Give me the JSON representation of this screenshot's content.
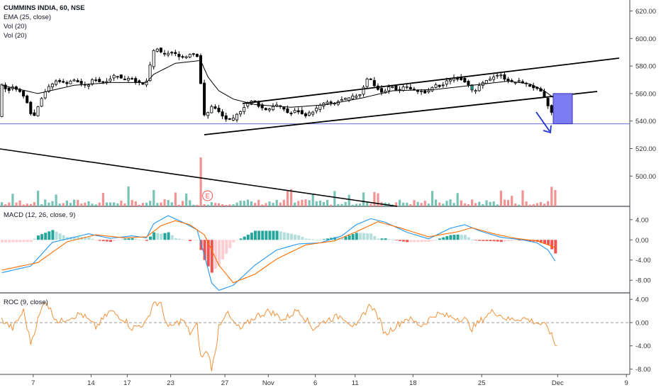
{
  "legend": {
    "symbol": "CUMMINS INDIA, 60, NSE",
    "ema": "EMA (25, close)",
    "vol1": "Vol (20)",
    "vol2": "Vol (20)",
    "macd": "MACD (12, 26, close, 9)",
    "roc": "ROC (9, close)"
  },
  "event_marker": "E",
  "colors": {
    "up": "#26a69a",
    "down": "#ef5350",
    "up_bar_vol": "#5fb8a8",
    "down_bar_vol": "#f08080",
    "macd_line": "#2196f3",
    "signal_line": "#ff6d00",
    "roc_line": "#f2913a",
    "level_line": "#6b6bd6",
    "target_box": "#7b7bf2",
    "arrow": "#2233cc",
    "divider": "#434651"
  },
  "chart_data": [
    {
      "type": "candlestick",
      "title": "CUMMINS INDIA, 60, NSE",
      "overlay": "EMA (25, close)",
      "ylim": [
        478,
        628
      ],
      "yticks": [
        "620.00",
        "600.00",
        "580.00",
        "560.00",
        "540.00",
        "520.00",
        "500.00"
      ],
      "xticks": [
        "7",
        "14",
        "17",
        "23",
        "27",
        "Nov",
        "6",
        "11",
        "18",
        "25",
        "Dec",
        "9"
      ],
      "close_path": [
        [
          0,
          568
        ],
        [
          2,
          562
        ],
        [
          4,
          565
        ],
        [
          6,
          560
        ],
        [
          8,
          552
        ],
        [
          9,
          540
        ],
        [
          10,
          548
        ],
        [
          12,
          560
        ],
        [
          14,
          566
        ],
        [
          16,
          570
        ],
        [
          18,
          567
        ],
        [
          20,
          570
        ],
        [
          22,
          568
        ],
        [
          24,
          565
        ],
        [
          26,
          571
        ],
        [
          28,
          568
        ],
        [
          30,
          570
        ],
        [
          32,
          574
        ],
        [
          34,
          570
        ],
        [
          36,
          572
        ],
        [
          38,
          568
        ],
        [
          40,
          566
        ],
        [
          41,
          572
        ],
        [
          42,
          588
        ],
        [
          43,
          594
        ],
        [
          45,
          588
        ],
        [
          47,
          590
        ],
        [
          49,
          588
        ],
        [
          51,
          586
        ],
        [
          53,
          590
        ],
        [
          54,
          588
        ],
        [
          55,
          587
        ],
        [
          56,
          548
        ],
        [
          57,
          540
        ],
        [
          58,
          552
        ],
        [
          60,
          548
        ],
        [
          62,
          542
        ],
        [
          64,
          540
        ],
        [
          66,
          546
        ],
        [
          68,
          552
        ],
        [
          70,
          555
        ],
        [
          72,
          550
        ],
        [
          74,
          548
        ],
        [
          76,
          552
        ],
        [
          78,
          550
        ],
        [
          80,
          545
        ],
        [
          82,
          548
        ],
        [
          84,
          544
        ],
        [
          86,
          546
        ],
        [
          88,
          550
        ],
        [
          90,
          554
        ],
        [
          92,
          552
        ],
        [
          94,
          555
        ],
        [
          96,
          556
        ],
        [
          98,
          558
        ],
        [
          100,
          560
        ],
        [
          101,
          570
        ],
        [
          102,
          572
        ],
        [
          104,
          564
        ],
        [
          106,
          560
        ],
        [
          108,
          566
        ],
        [
          110,
          562
        ],
        [
          112,
          566
        ],
        [
          114,
          562
        ],
        [
          116,
          562
        ],
        [
          118,
          560
        ],
        [
          120,
          566
        ],
        [
          122,
          565
        ],
        [
          124,
          570
        ],
        [
          126,
          572
        ],
        [
          128,
          570
        ],
        [
          130,
          566
        ],
        [
          131,
          558
        ],
        [
          132,
          565
        ],
        [
          134,
          568
        ],
        [
          136,
          572
        ],
        [
          138,
          574
        ],
        [
          140,
          570
        ],
        [
          142,
          568
        ],
        [
          144,
          569
        ],
        [
          146,
          566
        ],
        [
          148,
          564
        ],
        [
          150,
          560
        ],
        [
          151,
          554
        ],
        [
          152,
          548
        ],
        [
          153,
          544
        ]
      ],
      "ema_samples": [
        [
          0,
          566
        ],
        [
          10,
          560
        ],
        [
          20,
          566
        ],
        [
          30,
          568
        ],
        [
          40,
          568
        ],
        [
          42,
          574
        ],
        [
          48,
          582
        ],
        [
          55,
          584
        ],
        [
          57,
          572
        ],
        [
          60,
          562
        ],
        [
          64,
          556
        ],
        [
          70,
          552
        ],
        [
          80,
          550
        ],
        [
          90,
          552
        ],
        [
          100,
          557
        ],
        [
          108,
          562
        ],
        [
          120,
          563
        ],
        [
          130,
          566
        ],
        [
          140,
          569
        ],
        [
          146,
          567
        ],
        [
          150,
          562
        ],
        [
          153,
          556
        ]
      ],
      "volume_bars": [
        {
          "x": 55,
          "v": 15,
          "dir": "down"
        },
        {
          "x": 152,
          "v": 6,
          "dir": "down"
        },
        {
          "x": 153,
          "v": 5,
          "dir": "up"
        },
        {
          "x": 104,
          "v": 4,
          "dir": "up"
        },
        {
          "x": 42,
          "v": 5,
          "dir": "up"
        }
      ],
      "annotations": {
        "channel_upper": [
          [
            68,
            557
          ],
          [
            170,
            571
          ]
        ],
        "channel_lower": [
          [
            58,
            533
          ],
          [
            170,
            591
          ]
        ],
        "resistance_line": [
          [
            102,
            559
          ],
          [
            175,
            592
          ]
        ],
        "volume_trendline": [
          [
            0,
            522
          ],
          [
            112,
            475
          ]
        ],
        "level_line": 538,
        "target_box": [
          [
            158,
            538
          ],
          [
            168,
            560
          ]
        ]
      }
    },
    {
      "type": "line",
      "title": "MACD (12, 26, close, 9)",
      "ylim": [
        -10.5,
        6.5
      ],
      "yticks": [
        "4.00",
        "0.00",
        "-4.00",
        "-8.00"
      ],
      "series": [
        {
          "name": "MACD",
          "samples": [
            [
              0,
              -6.5
            ],
            [
              8,
              -5.2
            ],
            [
              14,
              -0.5
            ],
            [
              24,
              1.2
            ],
            [
              30,
              0.3
            ],
            [
              36,
              0.8
            ],
            [
              40,
              0.4
            ],
            [
              42,
              3.2
            ],
            [
              46,
              4.8
            ],
            [
              50,
              3.5
            ],
            [
              54,
              2.0
            ],
            [
              56,
              -3.0
            ],
            [
              58,
              -8.5
            ],
            [
              60,
              -10.0
            ],
            [
              64,
              -9.0
            ],
            [
              70,
              -5.0
            ],
            [
              76,
              -2.0
            ],
            [
              82,
              -0.8
            ],
            [
              88,
              -0.6
            ],
            [
              94,
              0.8
            ],
            [
              98,
              3.0
            ],
            [
              102,
              4.2
            ],
            [
              106,
              3.5
            ],
            [
              112,
              1.5
            ],
            [
              118,
              0.2
            ],
            [
              124,
              2.3
            ],
            [
              128,
              3.0
            ],
            [
              132,
              1.8
            ],
            [
              138,
              0.5
            ],
            [
              144,
              0.0
            ],
            [
              148,
              -0.6
            ],
            [
              151,
              -2.0
            ],
            [
              153,
              -4.2
            ]
          ]
        },
        {
          "name": "Signal",
          "samples": [
            [
              0,
              -6.0
            ],
            [
              10,
              -4.5
            ],
            [
              18,
              -0.4
            ],
            [
              26,
              1.0
            ],
            [
              34,
              0.4
            ],
            [
              40,
              0.6
            ],
            [
              44,
              2.8
            ],
            [
              48,
              3.8
            ],
            [
              52,
              3.0
            ],
            [
              56,
              1.0
            ],
            [
              60,
              -5.0
            ],
            [
              64,
              -8.5
            ],
            [
              70,
              -6.8
            ],
            [
              76,
              -3.8
            ],
            [
              84,
              -1.0
            ],
            [
              92,
              -0.2
            ],
            [
              98,
              1.6
            ],
            [
              104,
              3.6
            ],
            [
              110,
              2.4
            ],
            [
              118,
              0.6
            ],
            [
              126,
              1.6
            ],
            [
              130,
              2.4
            ],
            [
              136,
              1.2
            ],
            [
              142,
              0.3
            ],
            [
              148,
              -0.2
            ],
            [
              153,
              -1.5
            ]
          ]
        }
      ],
      "histogram_note": "histogram = MACD - Signal"
    },
    {
      "type": "line",
      "title": "ROC (9, close)",
      "ylim": [
        -8.8,
        5.0
      ],
      "yticks": [
        "4.00",
        "0.00",
        "-4.00",
        "-8.00"
      ],
      "series": [
        {
          "name": "ROC",
          "samples": [
            [
              0,
              0.5
            ],
            [
              3,
              -1.0
            ],
            [
              6,
              2.0
            ],
            [
              8,
              -3.5
            ],
            [
              10,
              0.5
            ],
            [
              12,
              4.0
            ],
            [
              14,
              1.5
            ],
            [
              16,
              0.0
            ],
            [
              18,
              0.8
            ],
            [
              22,
              1.5
            ],
            [
              26,
              -0.8
            ],
            [
              30,
              2.0
            ],
            [
              34,
              0.5
            ],
            [
              36,
              -1.0
            ],
            [
              40,
              0.0
            ],
            [
              42,
              3.6
            ],
            [
              44,
              3.0
            ],
            [
              46,
              -1.0
            ],
            [
              50,
              0.5
            ],
            [
              52,
              -1.8
            ],
            [
              54,
              -0.5
            ],
            [
              55,
              -6.0
            ],
            [
              57,
              -5.0
            ],
            [
              58,
              -7.8
            ],
            [
              59,
              -5.5
            ],
            [
              60,
              -0.5
            ],
            [
              62,
              1.8
            ],
            [
              64,
              0.0
            ],
            [
              66,
              -1.2
            ],
            [
              70,
              1.0
            ],
            [
              74,
              2.0
            ],
            [
              78,
              0.5
            ],
            [
              82,
              2.3
            ],
            [
              86,
              -1.0
            ],
            [
              90,
              0.5
            ],
            [
              94,
              1.2
            ],
            [
              98,
              -1.0
            ],
            [
              100,
              1.5
            ],
            [
              102,
              3.2
            ],
            [
              104,
              1.0
            ],
            [
              106,
              -2.0
            ],
            [
              108,
              -1.0
            ],
            [
              112,
              0.8
            ],
            [
              116,
              -0.5
            ],
            [
              120,
              1.5
            ],
            [
              124,
              1.0
            ],
            [
              128,
              0.6
            ],
            [
              130,
              -1.0
            ],
            [
              134,
              1.2
            ],
            [
              136,
              2.0
            ],
            [
              140,
              0.5
            ],
            [
              144,
              0.8
            ],
            [
              148,
              0.0
            ],
            [
              151,
              -0.8
            ],
            [
              153,
              -3.8
            ]
          ]
        }
      ],
      "zero_line": "dashed"
    }
  ]
}
